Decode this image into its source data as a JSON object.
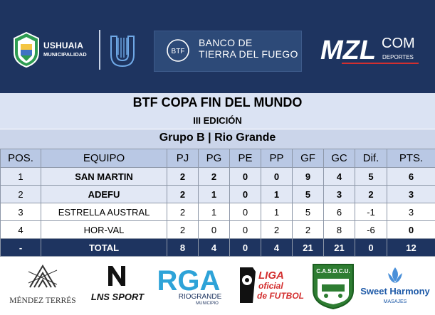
{
  "header": {
    "ushuaia_line1": "USHUAIA",
    "ushuaia_line2": "MUNICIPALIDAD",
    "bank_line1": "BANCO DE",
    "bank_line2": "TIERRA DEL FUEGO",
    "bank_badge": "BTF",
    "media_brand": "MZL",
    "media_suffix": "COM",
    "media_sub": "DEPORTES"
  },
  "title": "BTF COPA FIN DEL MUNDO",
  "subtitle": "III EDICIÓN",
  "group": "Grupo B | Rio Grande",
  "columns": [
    "POS.",
    "EQUIPO",
    "PJ",
    "PG",
    "PE",
    "PP",
    "GF",
    "GC",
    "Dif.",
    "PTS."
  ],
  "rows": [
    {
      "pos": "1",
      "team": "SAN MARTIN",
      "pj": "2",
      "pg": "2",
      "pe": "0",
      "pp": "0",
      "gf": "9",
      "gc": "4",
      "dif": "5",
      "pts": "6"
    },
    {
      "pos": "2",
      "team": "ADEFU",
      "pj": "2",
      "pg": "1",
      "pe": "0",
      "pp": "1",
      "gf": "5",
      "gc": "3",
      "dif": "2",
      "pts": "3"
    },
    {
      "pos": "3",
      "team": "ESTRELLA AUSTRAL",
      "pj": "2",
      "pg": "1",
      "pe": "0",
      "pp": "1",
      "gf": "5",
      "gc": "6",
      "dif": "-1",
      "pts": "3"
    },
    {
      "pos": "4",
      "team": "HOR-VAL",
      "pj": "2",
      "pg": "0",
      "pe": "0",
      "pp": "2",
      "gf": "2",
      "gc": "8",
      "dif": "-6",
      "pts": "0"
    }
  ],
  "total": {
    "pos": "-",
    "team": "TOTAL",
    "pj": "8",
    "pg": "4",
    "pe": "0",
    "pp": "4",
    "gf": "21",
    "gc": "21",
    "dif": "0",
    "pts": "12"
  },
  "sponsors": {
    "mendez": "MÉNDEZ TERRÉS",
    "lns": "LNS SPORT",
    "rga": "RGA",
    "rga_sub": "RIOGRANDE",
    "rga_sub2": "MUNICIPIO",
    "liga_l1": "LIGA",
    "liga_l2": "oficial",
    "liga_l3": "de FUTBOL",
    "casdcu": "C.A.S.D.C.U.",
    "sweet": "Sweet Harmony",
    "sweet_sub": "MASAJES"
  },
  "colors": {
    "navy": "#1e3460",
    "header_row": "#b9c8e4",
    "alt_row": "#e2e8f5",
    "green": "#2e7d32",
    "rga_blue": "#2ea3d8",
    "liga_red": "#d32f2f"
  }
}
